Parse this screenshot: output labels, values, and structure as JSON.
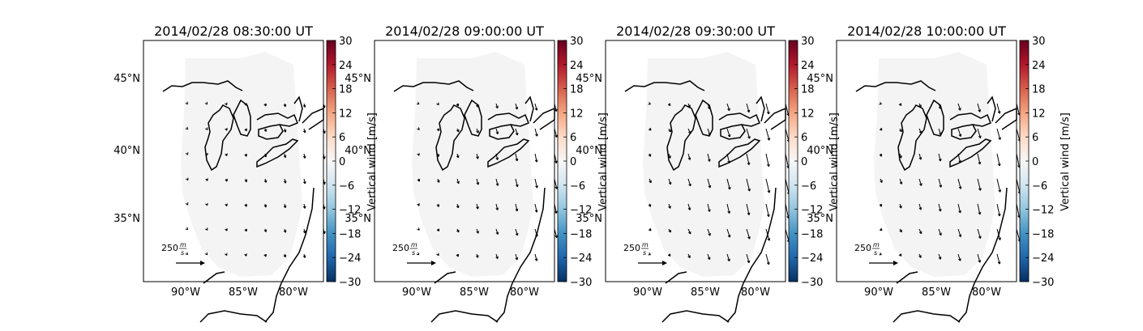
{
  "colorbar": {
    "label": "Vertical wind [m/s]",
    "ticks": [
      "30",
      "24",
      "18",
      "12",
      "6",
      "0",
      "−6",
      "−12",
      "−18",
      "−24",
      "−30"
    ],
    "range": [
      -30,
      30
    ]
  },
  "axes": {
    "lon_labels": [
      "90°W",
      "85°W",
      "80°W"
    ],
    "lat_labels": [
      "45°N",
      "40°N",
      "35°N"
    ]
  },
  "scale": {
    "label": "250",
    "unit_num": "m",
    "unit_den": "s"
  },
  "panels": [
    {
      "title": "2014/02/28 08:30:00 UT",
      "wind_strength": 0.35
    },
    {
      "title": "2014/02/28 09:00:00 UT",
      "wind_strength": 0.65
    },
    {
      "title": "2014/02/28 09:30:00 UT",
      "wind_strength": 1.0
    },
    {
      "title": "2014/02/28 10:00:00 UT",
      "wind_strength": 0.95
    }
  ]
}
